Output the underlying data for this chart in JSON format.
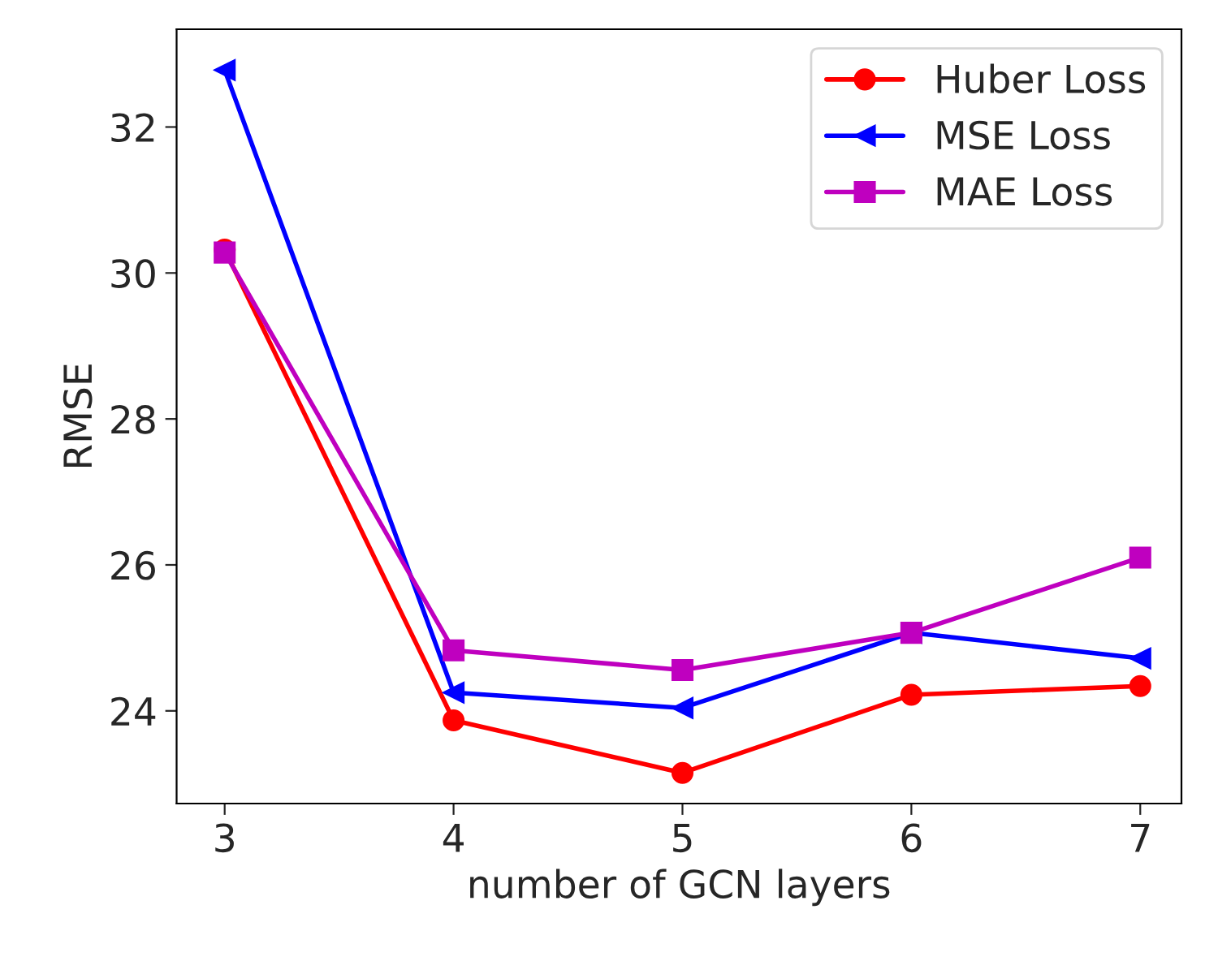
{
  "chart_data": {
    "type": "line",
    "xlabel": "number of GCN layers",
    "ylabel": "RMSE",
    "x": [
      3,
      4,
      5,
      6,
      7
    ],
    "series": [
      {
        "name": "Huber Loss",
        "color": "#ff0000",
        "marker": "circle",
        "values": [
          30.32,
          23.87,
          23.15,
          24.22,
          24.34
        ]
      },
      {
        "name": "MSE Loss",
        "color": "#0000ff",
        "marker": "triangle",
        "values": [
          32.78,
          24.25,
          24.04,
          25.07,
          24.72
        ]
      },
      {
        "name": "MAE Loss",
        "color": "#bf00bf",
        "marker": "square",
        "values": [
          30.28,
          24.83,
          24.56,
          25.07,
          26.1
        ]
      }
    ],
    "xlim": [
      2.79,
      7.18
    ],
    "ylim": [
      22.73,
      33.34
    ],
    "xticks": [
      3,
      4,
      5,
      6,
      7
    ],
    "yticks": [
      24,
      26,
      28,
      30,
      32
    ],
    "grid": false,
    "legend": "top right",
    "line_style": "solid"
  }
}
